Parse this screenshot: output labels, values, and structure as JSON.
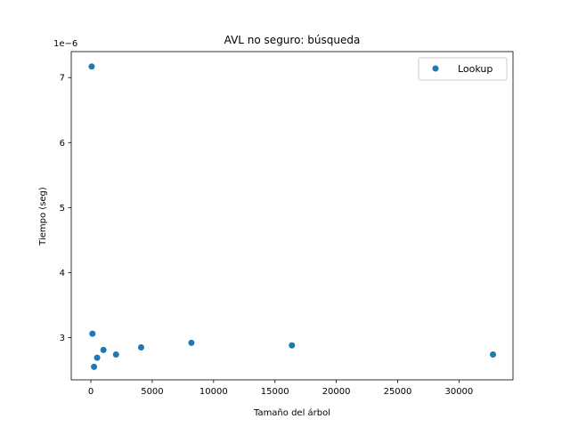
{
  "chart_data": {
    "type": "scatter",
    "title": "AVL no seguro: búsqueda",
    "xlabel": "Tamaño del árbol",
    "ylabel": "Tiempo (seg)",
    "y_offset_label": "1e−6",
    "y_scale": 1e-06,
    "xlim": [
      -1600,
      34400
    ],
    "ylim": [
      2.35e-06,
      7.4e-06
    ],
    "x_ticks": [
      0,
      5000,
      10000,
      15000,
      20000,
      25000,
      30000
    ],
    "y_ticks": [
      3e-06,
      4e-06,
      5e-06,
      6e-06,
      7e-06
    ],
    "x_tick_labels": [
      "0",
      "5000",
      "10000",
      "15000",
      "20000",
      "25000",
      "30000"
    ],
    "y_tick_labels": [
      "3",
      "4",
      "5",
      "6",
      "7"
    ],
    "grid": false,
    "legend_position": "top-right",
    "series": [
      {
        "name": "Lookup",
        "color": "#1f77b4",
        "points": [
          {
            "x": 64,
            "y": 7.17e-06
          },
          {
            "x": 128,
            "y": 3.06e-06
          },
          {
            "x": 256,
            "y": 2.55e-06
          },
          {
            "x": 512,
            "y": 2.69e-06
          },
          {
            "x": 1024,
            "y": 2.81e-06
          },
          {
            "x": 2048,
            "y": 2.74e-06
          },
          {
            "x": 4096,
            "y": 2.85e-06
          },
          {
            "x": 8192,
            "y": 2.92e-06
          },
          {
            "x": 16384,
            "y": 2.88e-06
          },
          {
            "x": 32768,
            "y": 2.74e-06
          }
        ]
      }
    ]
  }
}
